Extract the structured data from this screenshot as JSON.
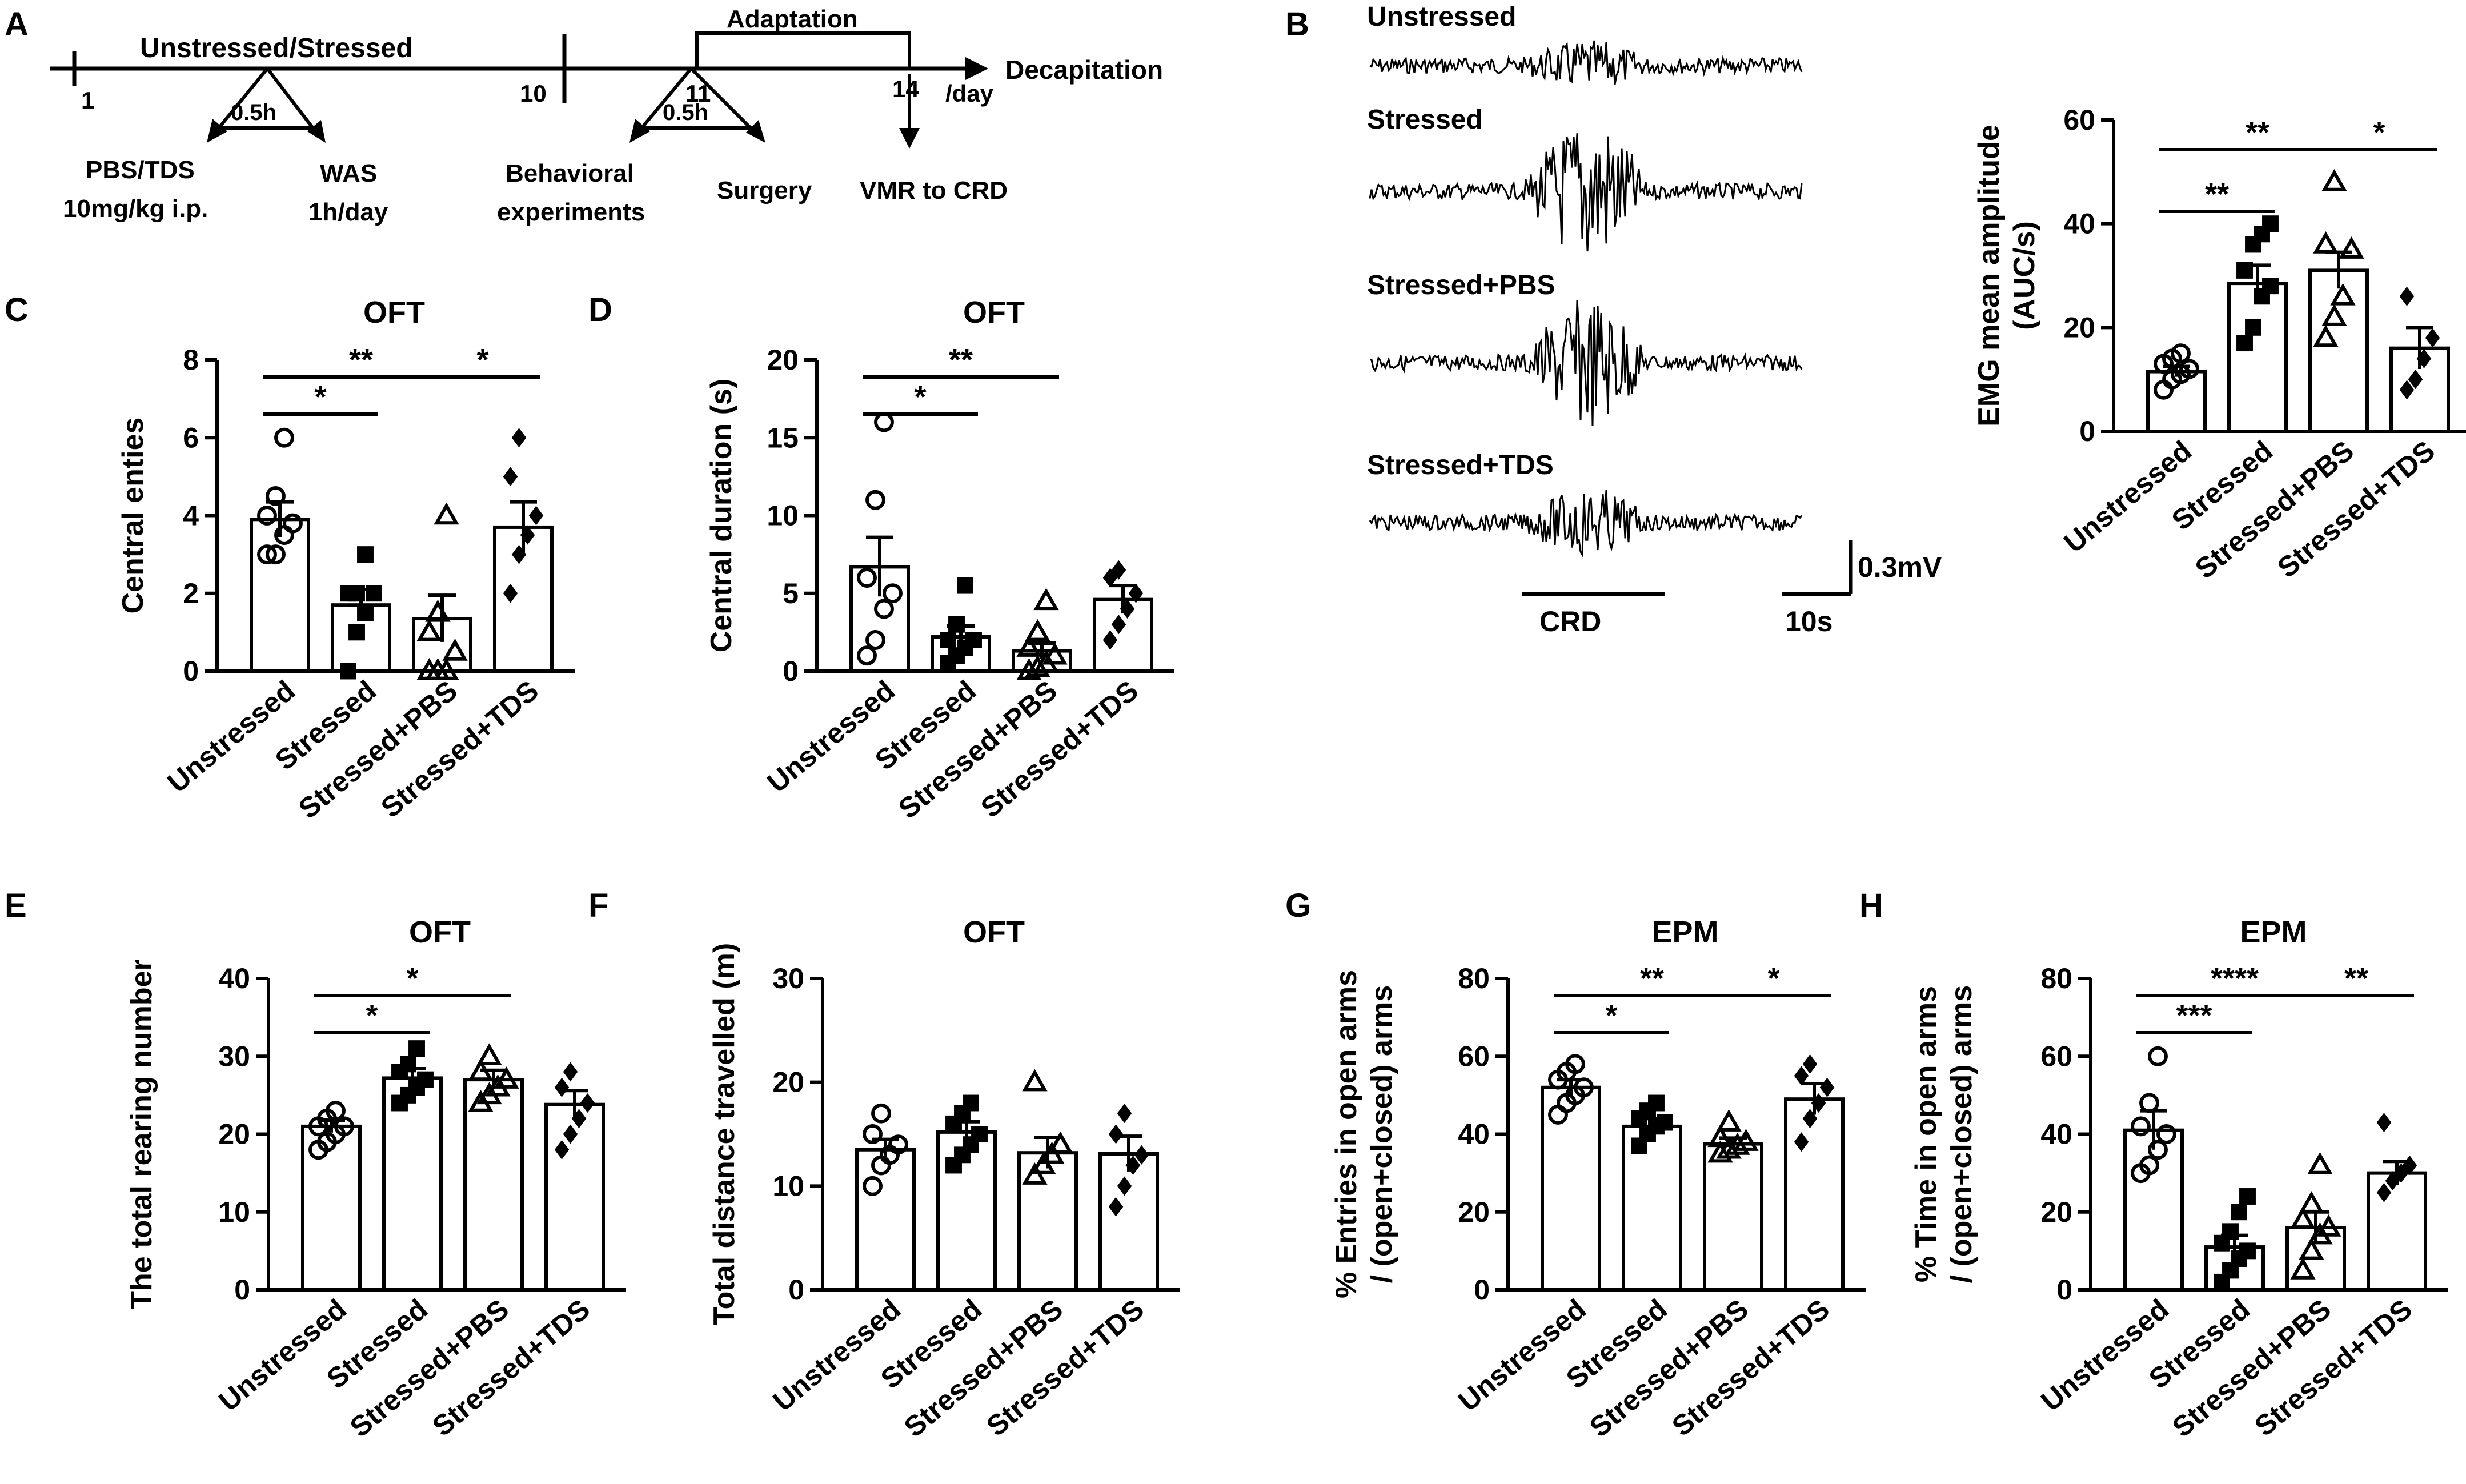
{
  "panel_labels": {
    "A": "A",
    "B": "B",
    "C": "C",
    "D": "D",
    "E": "E",
    "F": "F",
    "G": "G",
    "H": "H"
  },
  "timeline": {
    "phase1_label": "Unstressed/Stressed",
    "adaptation_label": "Adaptation",
    "day_1": "1",
    "day_10": "10",
    "day_11": "11",
    "day_14": "14",
    "unit_label": "/day",
    "end_label": "Decapitation",
    "interval1": "0.5h",
    "interval2": "0.5h",
    "treatment_line1": "PBS/TDS",
    "treatment_line2": "10mg/kg i.p.",
    "was_line1": "WAS",
    "was_line2": "1h/day",
    "behavior_line1": "Behavioral",
    "behavior_line2": "experiments",
    "surgery_label": "Surgery",
    "vmr_label": "VMR to CRD"
  },
  "emg_traces": {
    "trace_labels": [
      "Unstressed",
      "Stressed",
      "Stressed+PBS",
      "Stressed+TDS"
    ],
    "trace_amplitudes": [
      0.25,
      1.0,
      0.85,
      0.4
    ],
    "crd_label": "CRD",
    "scale_voltage": "0.3mV",
    "scale_time": "10s"
  },
  "colors": {
    "ink": "#000000",
    "bar_fill": "#ffffff"
  },
  "chart_data": [
    {
      "panel": "B",
      "type": "bar",
      "title": "",
      "ylabel": "EMG mean amplitude (AUC/s)",
      "ylabel_lines": [
        "EMG mean amplitude",
        "(AUC/s)"
      ],
      "ylim": [
        0,
        60
      ],
      "yticks": [
        0,
        20,
        40,
        60
      ],
      "categories": [
        "Unstressed",
        "Stressed",
        "Stressed+PBS",
        "Stressed+TDS"
      ],
      "markers": [
        "circle",
        "square",
        "triangle",
        "diamond"
      ],
      "values": [
        11.5,
        28.5,
        31.0,
        16.0
      ],
      "sem": [
        1.0,
        3.5,
        3.5,
        4.0
      ],
      "points": [
        [
          8,
          10,
          11,
          12,
          13,
          14,
          15
        ],
        [
          17,
          20,
          26,
          28,
          31,
          36,
          38,
          40
        ],
        [
          18,
          22,
          26,
          35,
          36,
          48
        ],
        [
          8,
          10,
          14,
          18,
          26
        ]
      ],
      "significance": [
        {
          "from": 0,
          "to": 1,
          "label": "**"
        },
        {
          "from": 0,
          "to": 2,
          "label": "**"
        },
        {
          "from": 2,
          "to": 3,
          "label": "*"
        }
      ]
    },
    {
      "panel": "C",
      "type": "bar",
      "title": "OFT",
      "ylabel": "Central enties",
      "ylabel_lines": [
        "Central enties"
      ],
      "ylim": [
        0,
        8
      ],
      "yticks": [
        0,
        2,
        4,
        6,
        8
      ],
      "categories": [
        "Unstressed",
        "Stressed",
        "Stressed+PBS",
        "Stressed+TDS"
      ],
      "markers": [
        "circle",
        "square",
        "triangle",
        "diamond"
      ],
      "values": [
        3.9,
        1.7,
        1.35,
        3.7
      ],
      "sem": [
        0.45,
        0.4,
        0.6,
        0.65
      ],
      "points": [
        [
          3,
          3,
          3.5,
          3.8,
          4,
          4.5,
          6
        ],
        [
          0,
          1,
          1.5,
          2,
          2,
          2,
          3
        ],
        [
          0,
          0,
          0,
          0.5,
          1,
          1.5,
          4
        ],
        [
          2,
          3,
          3.5,
          4,
          5,
          6
        ]
      ],
      "significance": [
        {
          "from": 0,
          "to": 1,
          "label": "*"
        },
        {
          "from": 0,
          "to": 2,
          "label": "**"
        },
        {
          "from": 2,
          "to": 3,
          "label": "*"
        }
      ]
    },
    {
      "panel": "D",
      "type": "bar",
      "title": "OFT",
      "ylabel": "Central duration (s)",
      "ylabel_lines": [
        "Central duration (s)"
      ],
      "ylim": [
        0,
        20
      ],
      "yticks": [
        0,
        5,
        10,
        15,
        20
      ],
      "categories": [
        "Unstressed",
        "Stressed",
        "Stressed+PBS",
        "Stressed+TDS"
      ],
      "markers": [
        "circle",
        "square",
        "triangle",
        "diamond"
      ],
      "values": [
        6.7,
        2.2,
        1.3,
        4.6
      ],
      "sem": [
        1.9,
        0.7,
        0.5,
        0.9
      ],
      "points": [
        [
          1,
          2,
          4,
          5,
          6,
          11,
          16
        ],
        [
          0.5,
          1,
          1.5,
          2,
          2,
          3,
          5.5
        ],
        [
          0,
          0.2,
          0.5,
          1,
          1.5,
          2.5,
          4.5
        ],
        [
          2,
          3,
          4,
          5,
          6,
          6.5
        ]
      ],
      "significance": [
        {
          "from": 0,
          "to": 1,
          "label": "*"
        },
        {
          "from": 0,
          "to": 2,
          "label": "**"
        }
      ]
    },
    {
      "panel": "E",
      "type": "bar",
      "title": "OFT",
      "ylabel": "The total rearing number",
      "ylabel_lines": [
        "The total rearing number"
      ],
      "ylim": [
        0,
        40
      ],
      "yticks": [
        0,
        10,
        20,
        30,
        40
      ],
      "categories": [
        "Unstressed",
        "Stressed",
        "Stressed+PBS",
        "Stressed+TDS"
      ],
      "markers": [
        "circle",
        "square",
        "triangle",
        "diamond"
      ],
      "values": [
        21,
        27.2,
        27,
        23.8
      ],
      "sem": [
        0.8,
        1.2,
        1.2,
        1.8
      ],
      "points": [
        [
          18,
          19,
          20,
          21,
          21,
          22,
          23
        ],
        [
          24,
          25,
          26,
          27,
          28,
          29,
          31
        ],
        [
          24,
          25,
          26,
          27,
          28,
          30
        ],
        [
          18,
          20,
          22,
          24,
          26,
          28
        ]
      ],
      "significance": [
        {
          "from": 0,
          "to": 1,
          "label": "*"
        },
        {
          "from": 0,
          "to": 2,
          "label": "*"
        }
      ]
    },
    {
      "panel": "F",
      "type": "bar",
      "title": "OFT",
      "ylabel": "Total distance travelled (m)",
      "ylabel_lines": [
        "Total distance travelled (m)"
      ],
      "ylim": [
        0,
        30
      ],
      "yticks": [
        0,
        10,
        20,
        30
      ],
      "categories": [
        "Unstressed",
        "Stressed",
        "Stressed+PBS",
        "Stressed+TDS"
      ],
      "markers": [
        "circle",
        "square",
        "triangle",
        "diamond"
      ],
      "values": [
        13.5,
        15.2,
        13.2,
        13.1
      ],
      "sem": [
        1.0,
        1.0,
        1.5,
        1.7
      ],
      "points": [
        [
          10,
          12,
          13,
          14,
          15,
          17
        ],
        [
          12,
          13,
          14,
          15,
          16,
          17,
          18
        ],
        [
          11,
          12,
          13,
          14,
          20
        ],
        [
          8,
          10,
          12,
          13,
          15,
          17
        ]
      ],
      "significance": []
    },
    {
      "panel": "G",
      "type": "bar",
      "title": "EPM",
      "ylabel": "% Entries in open arms / (open+closed) arms",
      "ylabel_lines": [
        "% Entries in open arms",
        "/ (open+closed) arms"
      ],
      "ylim": [
        0,
        80
      ],
      "yticks": [
        0,
        20,
        40,
        60,
        80
      ],
      "categories": [
        "Unstressed",
        "Stressed",
        "Stressed+PBS",
        "Stressed+TDS"
      ],
      "markers": [
        "circle",
        "square",
        "triangle",
        "diamond"
      ],
      "values": [
        52,
        42,
        37.5,
        49
      ],
      "sem": [
        2.0,
        2.0,
        1.5,
        4.0
      ],
      "points": [
        [
          45,
          48,
          50,
          52,
          54,
          56,
          58
        ],
        [
          37,
          40,
          42,
          43,
          44,
          46,
          48
        ],
        [
          35,
          36,
          37,
          38,
          39,
          43
        ],
        [
          38,
          44,
          48,
          52,
          55,
          58
        ]
      ],
      "significance": [
        {
          "from": 0,
          "to": 1,
          "label": "*"
        },
        {
          "from": 0,
          "to": 2,
          "label": "**"
        },
        {
          "from": 2,
          "to": 3,
          "label": "*"
        }
      ]
    },
    {
      "panel": "H",
      "type": "bar",
      "title": "EPM",
      "ylabel": "% Time in open arms / (open+closed) arms",
      "ylabel_lines": [
        "% Time in open arms",
        "/ (open+closed) arms"
      ],
      "ylim": [
        0,
        80
      ],
      "yticks": [
        0,
        20,
        40,
        60,
        80
      ],
      "categories": [
        "Unstressed",
        "Stressed",
        "Stressed+PBS",
        "Stressed+TDS"
      ],
      "markers": [
        "circle",
        "square",
        "triangle",
        "diamond"
      ],
      "values": [
        41,
        11,
        16,
        30
      ],
      "sem": [
        5.0,
        3.0,
        4.0,
        3.0
      ],
      "points": [
        [
          30,
          32,
          36,
          40,
          42,
          48,
          60
        ],
        [
          2,
          5,
          8,
          10,
          12,
          15,
          20,
          24
        ],
        [
          5,
          10,
          14,
          16,
          18,
          22,
          32
        ],
        [
          25,
          28,
          30,
          32,
          43
        ]
      ],
      "significance": [
        {
          "from": 0,
          "to": 1,
          "label": "***"
        },
        {
          "from": 0,
          "to": 2,
          "label": "****"
        },
        {
          "from": 2,
          "to": 3,
          "label": "**"
        }
      ]
    }
  ]
}
